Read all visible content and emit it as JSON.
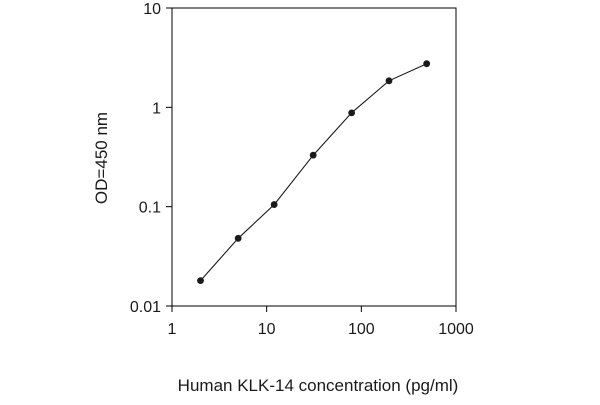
{
  "chart_data": {
    "type": "line",
    "title": "",
    "xlabel": "Human KLK-14 concentration (pg/ml)",
    "ylabel": "OD=450 nm",
    "x_scale": "log",
    "y_scale": "log",
    "xlim": [
      1,
      1000
    ],
    "ylim": [
      0.01,
      10
    ],
    "x_ticks": [
      1,
      10,
      100,
      1000
    ],
    "x_tick_labels": [
      "1",
      "10",
      "100",
      "1000"
    ],
    "y_ticks": [
      0.01,
      0.1,
      1,
      10
    ],
    "y_tick_labels": [
      "0.01",
      "0.1",
      "1",
      "10"
    ],
    "grid": false,
    "series": [
      {
        "x": [
          2,
          5,
          12,
          31,
          79,
          196,
          490
        ],
        "y": [
          0.018,
          0.048,
          0.105,
          0.33,
          0.88,
          1.85,
          2.75
        ]
      }
    ]
  }
}
